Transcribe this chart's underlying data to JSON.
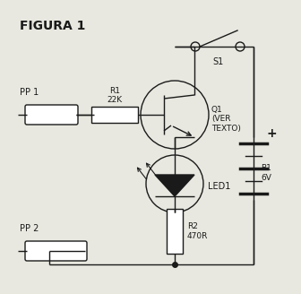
{
  "title": "FIGURA 1",
  "background_color": "#e8e8e0",
  "line_color": "#1a1a1a",
  "text_color": "#1a1a1a",
  "figsize": [
    3.36,
    3.28
  ],
  "dpi": 100,
  "components": {
    "pp1_label": "PP 1",
    "pp2_label": "PP 2",
    "r1_label": "R1\n22K",
    "r2_label": "R2\n470R",
    "q1_label": "Q1\n(VER\nTEXTO)",
    "s1_label": "S1",
    "b1_label": "B1\n6V",
    "led1_label": "LED1"
  }
}
